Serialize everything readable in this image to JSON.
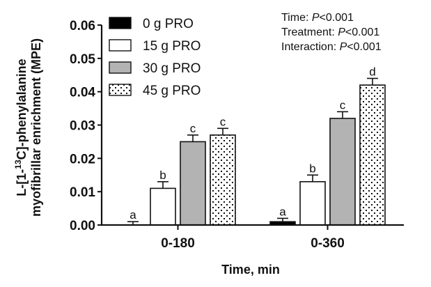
{
  "chart_data": {
    "type": "bar",
    "title": "",
    "xlabel": "Time, min",
    "ylabel_line1": "L-[1-",
    "ylabel_sup": "13",
    "ylabel_line1_rest": "C]-phenylalanine",
    "ylabel_line2": "myofibrillar enrichment (MPE)",
    "ylabel": "L-[1-13C]-phenylalanine myofibrillar enrichment (MPE)",
    "ylim": [
      0,
      0.06
    ],
    "yticks": [
      "0.00",
      "0.01",
      "0.02",
      "0.03",
      "0.04",
      "0.05",
      "0.06"
    ],
    "ytick_values": [
      0,
      0.01,
      0.02,
      0.03,
      0.04,
      0.05,
      0.06
    ],
    "categories": [
      "0-180",
      "0-360"
    ],
    "legend_position": "top-left",
    "series": [
      {
        "name": "0 g PRO",
        "values": [
          0.0,
          0.001
        ],
        "errors": [
          0.001,
          0.001
        ],
        "letters": [
          "a",
          "a"
        ],
        "fill": "#000000",
        "pattern": "solid"
      },
      {
        "name": "15 g PRO",
        "values": [
          0.011,
          0.013
        ],
        "errors": [
          0.002,
          0.002
        ],
        "letters": [
          "b",
          "b"
        ],
        "fill": "#ffffff",
        "pattern": "solid"
      },
      {
        "name": "30 g PRO",
        "values": [
          0.025,
          0.032
        ],
        "errors": [
          0.002,
          0.002
        ],
        "letters": [
          "c",
          "c"
        ],
        "fill": "#b3b3b3",
        "pattern": "solid"
      },
      {
        "name": "45 g PRO",
        "values": [
          0.027,
          0.042
        ],
        "errors": [
          0.002,
          0.002
        ],
        "letters": [
          "c",
          "d"
        ],
        "fill": "#ffffff",
        "pattern": "dots"
      }
    ],
    "annotations": [
      {
        "label": "Time: ",
        "p": "P",
        "value": "<0.001"
      },
      {
        "label": "Treatment: ",
        "p": "P",
        "value": "<0.001"
      },
      {
        "label": "Interaction: ",
        "p": "P",
        "value": "<0.001"
      }
    ]
  }
}
